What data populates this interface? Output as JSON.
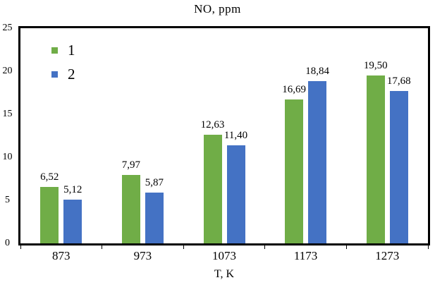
{
  "chart_data": {
    "type": "bar",
    "title": "NO, ppm",
    "xlabel": "T, K",
    "ylabel": "",
    "categories": [
      "873",
      "973",
      "1073",
      "1173",
      "1273"
    ],
    "series": [
      {
        "name": "1",
        "color": "#70AD47",
        "values": [
          6.52,
          7.97,
          12.63,
          16.69,
          19.5
        ],
        "labels": [
          "6,52",
          "7,97",
          "12,63",
          "16,69",
          "19,50"
        ]
      },
      {
        "name": "2",
        "color": "#4472C4",
        "values": [
          5.12,
          5.87,
          11.4,
          18.84,
          17.68
        ],
        "labels": [
          "5,12",
          "5,87",
          "11,40",
          "18,84",
          "17,68"
        ]
      }
    ],
    "ylim": [
      0,
      25
    ],
    "yticks": [
      0,
      5,
      10,
      15,
      20,
      25
    ],
    "grid": false,
    "legend_position": "top-left-inside",
    "decimal_separator": ",",
    "axis_color": "#000000"
  }
}
